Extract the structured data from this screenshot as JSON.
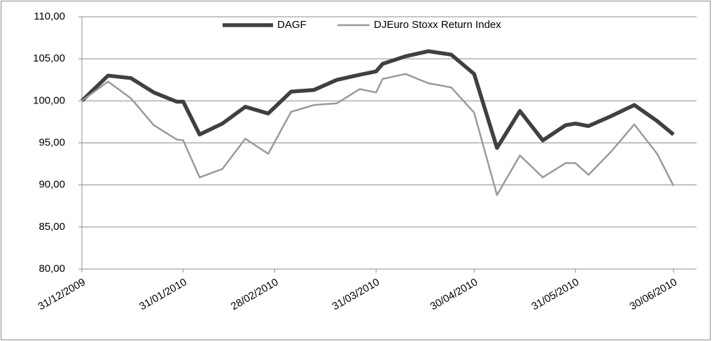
{
  "chart_data": {
    "type": "line",
    "x": [
      "31/12/2009",
      "08/01/2010",
      "15/01/2010",
      "22/01/2010",
      "29/01/2010",
      "31/01/2010",
      "05/02/2010",
      "12/02/2010",
      "19/02/2010",
      "26/02/2010",
      "05/03/2010",
      "12/03/2010",
      "19/03/2010",
      "26/03/2010",
      "31/03/2010",
      "02/04/2010",
      "09/04/2010",
      "16/04/2010",
      "23/04/2010",
      "30/04/2010",
      "07/05/2010",
      "14/05/2010",
      "21/05/2010",
      "28/05/2010",
      "31/05/2010",
      "04/06/2010",
      "11/06/2010",
      "18/06/2010",
      "25/06/2010",
      "30/06/2010"
    ],
    "series": [
      {
        "name": "DAGF",
        "color": "#404040",
        "values": [
          100.0,
          103.0,
          102.7,
          101.0,
          99.9,
          99.9,
          96.0,
          97.3,
          99.3,
          98.5,
          101.1,
          101.3,
          102.5,
          103.1,
          103.5,
          104.4,
          105.3,
          105.9,
          105.5,
          103.2,
          94.4,
          98.8,
          95.3,
          97.1,
          97.3,
          97.0,
          98.2,
          99.5,
          97.6,
          96.0
        ]
      },
      {
        "name": "DJEuro Stoxx Return Index",
        "color": "#9a9a9a",
        "values": [
          100.0,
          102.3,
          100.3,
          97.1,
          95.4,
          95.3,
          90.9,
          91.9,
          95.5,
          93.7,
          98.7,
          99.5,
          99.7,
          101.4,
          101.0,
          102.6,
          103.2,
          102.1,
          101.6,
          98.6,
          88.8,
          93.5,
          90.9,
          92.6,
          92.6,
          91.2,
          94.0,
          97.2,
          93.7,
          89.9
        ]
      }
    ],
    "xlim": [
      "31/12/2009",
      "30/06/2010"
    ],
    "xticks": [
      "31/12/2009",
      "31/01/2010",
      "28/02/2010",
      "31/03/2010",
      "30/04/2010",
      "31/05/2010",
      "30/06/2010"
    ],
    "ylim": [
      80,
      110
    ],
    "yticks": [
      {
        "value": 80,
        "label": "80,00"
      },
      {
        "value": 85,
        "label": "85,00"
      },
      {
        "value": 90,
        "label": "90,00"
      },
      {
        "value": 95,
        "label": "95,00"
      },
      {
        "value": 100,
        "label": "100,00"
      },
      {
        "value": 105,
        "label": "105,00"
      },
      {
        "value": 110,
        "label": "110,00"
      }
    ],
    "grid": true,
    "legend": "top"
  }
}
